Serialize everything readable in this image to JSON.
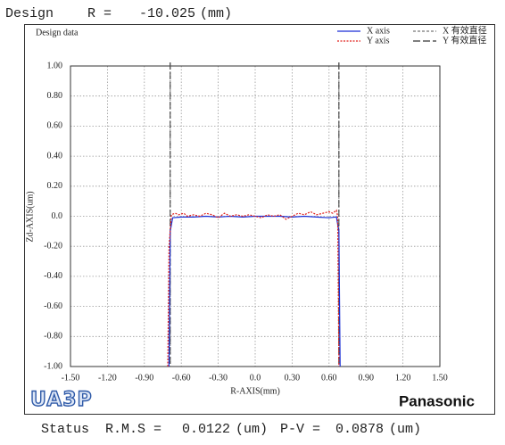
{
  "header": {
    "label": "Design",
    "param": "R =",
    "value": -10.025,
    "unit": "(mm)"
  },
  "chart_data": {
    "type": "line",
    "title": "Design data",
    "x_label": "R-AXIS(mm)",
    "y_label": "Zd-AXIS(um)",
    "xlim": [
      -1.5,
      1.5
    ],
    "ylim": [
      -1,
      1
    ],
    "xticks": [
      {
        "value": -1.5,
        "label": "-1.50"
      },
      {
        "value": -1.2,
        "label": "-1.20"
      },
      {
        "value": -0.9,
        "label": "-0.90"
      },
      {
        "value": -0.6,
        "label": "-0.60"
      },
      {
        "value": -0.3,
        "label": "-0.30"
      },
      {
        "value": 0,
        "label": "0.0"
      },
      {
        "value": 0.3,
        "label": "0.30"
      },
      {
        "value": 0.6,
        "label": "0.60"
      },
      {
        "value": 0.9,
        "label": "0.90"
      },
      {
        "value": 1.2,
        "label": "1.20"
      },
      {
        "value": 1.5,
        "label": "1.50"
      }
    ],
    "yticks": [
      {
        "value": 1,
        "label": "1.00"
      },
      {
        "value": 0.8,
        "label": "0.80"
      },
      {
        "value": 0.6,
        "label": "0.60"
      },
      {
        "value": 0.4,
        "label": "0.40"
      },
      {
        "value": 0.2,
        "label": "0.20"
      },
      {
        "value": 0,
        "label": "0.0"
      },
      {
        "value": -0.2,
        "label": "-0.20"
      },
      {
        "value": -0.4,
        "label": "-0.40"
      },
      {
        "value": -0.6,
        "label": "-0.60"
      },
      {
        "value": -0.8,
        "label": "-0.80"
      },
      {
        "value": -1,
        "label": "-1.00"
      }
    ],
    "grid": true,
    "legend": "top-right",
    "series": [
      {
        "name": "X axis",
        "color": "#1a2fd6",
        "dash": "none",
        "x": [
          -0.7,
          -0.69,
          -0.67,
          -0.6,
          -0.5,
          -0.4,
          -0.3,
          -0.2,
          -0.1,
          0,
          0.1,
          0.2,
          0.3,
          0.4,
          0.5,
          0.6,
          0.66,
          0.68,
          0.69
        ],
        "values": [
          -1.0,
          -0.1,
          -0.01,
          -0.005,
          -0.005,
          0,
          -0.005,
          0,
          -0.005,
          0,
          0,
          0,
          -0.005,
          0,
          -0.005,
          -0.01,
          -0.005,
          -0.1,
          -1.0
        ]
      },
      {
        "name": "Y axis",
        "color": "#e0201c",
        "dash": "2,1.5",
        "x": [
          -0.71,
          -0.7,
          -0.68,
          -0.65,
          -0.62,
          -0.58,
          -0.55,
          -0.5,
          -0.45,
          -0.4,
          -0.35,
          -0.3,
          -0.25,
          -0.2,
          -0.15,
          -0.1,
          -0.05,
          0,
          0.05,
          0.1,
          0.15,
          0.2,
          0.25,
          0.3,
          0.35,
          0.4,
          0.45,
          0.5,
          0.55,
          0.6,
          0.63,
          0.66,
          0.67,
          0.68
        ],
        "values": [
          -1.0,
          -0.2,
          0.01,
          0.02,
          0.01,
          0.02,
          0.0,
          0.01,
          0.0,
          0.02,
          0.01,
          -0.01,
          0.02,
          0.0,
          0.01,
          0.0,
          0.01,
          0.0,
          -0.01,
          0.01,
          0.0,
          0.01,
          -0.02,
          0.0,
          0.02,
          0.01,
          0.03,
          0.01,
          0.02,
          0.03,
          0.02,
          0.04,
          0.0,
          -1.0
        ]
      }
    ],
    "reference_lines": [
      {
        "name": "X 有效直径",
        "color": "#777777",
        "dash": "3,2",
        "x": [
          -0.69,
          0.68
        ]
      },
      {
        "name": "Y 有效直径",
        "color": "#333333",
        "dash": "8,3",
        "x": [
          -0.69,
          0.68
        ]
      }
    ]
  },
  "logos": {
    "left": "UA3P",
    "right": "Panasonic"
  },
  "status": {
    "label": "Status",
    "rms_label": "R.M.S =",
    "rms": 0.0122,
    "rms_unit": "(um)",
    "pv_label": "P-V =",
    "pv": 0.0878,
    "pv_unit": "(um)"
  }
}
